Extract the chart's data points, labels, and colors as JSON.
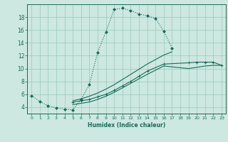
{
  "xlabel": "Humidex (Indice chaleur)",
  "bg_color": "#cce8e0",
  "line_color": "#1a6b5a",
  "xlim": [
    -0.5,
    23.5
  ],
  "ylim": [
    3.0,
    20.0
  ],
  "xticks": [
    0,
    1,
    2,
    3,
    4,
    5,
    6,
    7,
    8,
    9,
    10,
    11,
    12,
    13,
    14,
    15,
    16,
    17,
    18,
    19,
    20,
    21,
    22,
    23
  ],
  "yticks": [
    4,
    6,
    8,
    10,
    12,
    14,
    16,
    18
  ],
  "grid_color": "#99c8bc",
  "line1_x": [
    0,
    1,
    2,
    3,
    4,
    5,
    6,
    7,
    8,
    9,
    10,
    11,
    12,
    13,
    14,
    15,
    16,
    17
  ],
  "line1_y": [
    5.8,
    4.9,
    4.2,
    3.9,
    3.7,
    3.6,
    5.2,
    7.5,
    12.5,
    15.7,
    19.2,
    19.4,
    19.0,
    18.5,
    18.2,
    17.8,
    15.8,
    13.2
  ],
  "line2_x": [
    5,
    6,
    7,
    8,
    9,
    10,
    11,
    12,
    13,
    14,
    15,
    16,
    17
  ],
  "line2_y": [
    5.0,
    5.3,
    5.7,
    6.2,
    6.8,
    7.5,
    8.3,
    9.1,
    9.9,
    10.7,
    11.4,
    12.1,
    12.6
  ],
  "line3_x": [
    5,
    6,
    7,
    8,
    9,
    10,
    11,
    12,
    13,
    14,
    16,
    19,
    20,
    21,
    22,
    23
  ],
  "line3_y": [
    4.8,
    5.0,
    5.2,
    5.6,
    6.0,
    6.6,
    7.3,
    8.0,
    8.8,
    9.6,
    10.7,
    10.9,
    11.0,
    11.0,
    11.0,
    10.5
  ],
  "line4_x": [
    5,
    6,
    7,
    8,
    9,
    10,
    11,
    12,
    13,
    14,
    16,
    19,
    20,
    21,
    22,
    23
  ],
  "line4_y": [
    4.4,
    4.6,
    4.8,
    5.2,
    5.7,
    6.3,
    7.0,
    7.7,
    8.4,
    9.1,
    10.4,
    10.0,
    10.2,
    10.4,
    10.5,
    10.5
  ]
}
